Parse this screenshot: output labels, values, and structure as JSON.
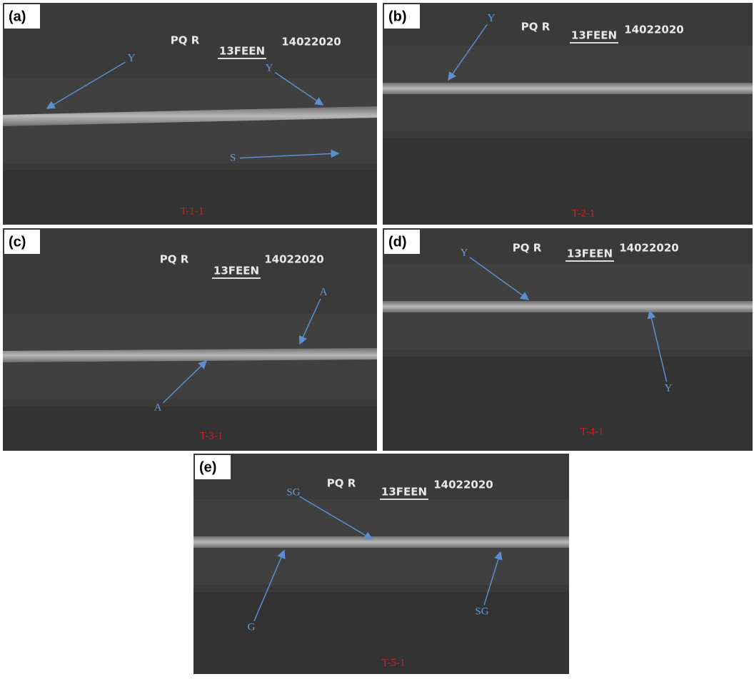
{
  "panels": [
    {
      "label": "(a)",
      "markers": [
        "PQ R",
        "13FEEN",
        "14022020"
      ],
      "annotations": [
        "Y",
        "Y",
        "S"
      ],
      "code": "T-1-1"
    },
    {
      "label": "(b)",
      "markers": [
        "PQ R",
        "13FEEN",
        "14022020"
      ],
      "annotations": [
        "Y"
      ],
      "code": "T-2-1"
    },
    {
      "label": "(c)",
      "markers": [
        "PQ R",
        "13FEEN",
        "14022020"
      ],
      "annotations": [
        "A",
        "A"
      ],
      "code": "T-3-1"
    },
    {
      "label": "(d)",
      "markers": [
        "PQ R",
        "13FEEN",
        "14022020"
      ],
      "annotations": [
        "Y",
        "Y"
      ],
      "code": "T-4-1"
    },
    {
      "label": "(e)",
      "markers": [
        "PQ R",
        "13FEEN",
        "14022020"
      ],
      "annotations": [
        "SG",
        "G",
        "SG"
      ],
      "code": "T-5-1"
    }
  ]
}
